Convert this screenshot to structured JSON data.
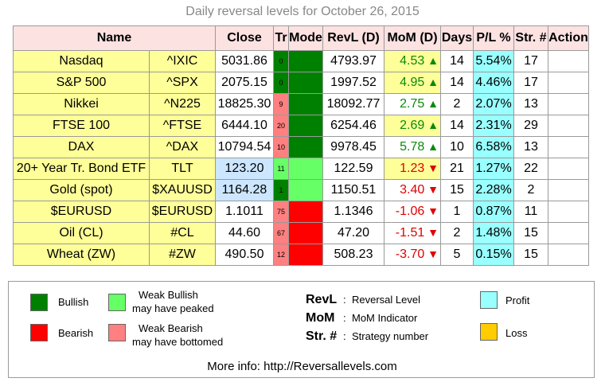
{
  "title": "Daily reversal levels for October 26, 2015",
  "headers": {
    "name": "Name",
    "close": "Close",
    "tr": "Tr",
    "mode": "Mode",
    "revl": "RevL (D)",
    "mom": "MoM (D)",
    "days": "Days",
    "pl": "P/L %",
    "str": "Str. #",
    "action": "Action"
  },
  "colors": {
    "bullish": "#008000",
    "weak_bullish": "#66ff66",
    "bearish": "#ff0000",
    "weak_bearish": "#ff8080",
    "profit": "#99ffff",
    "loss": "#ffcc00",
    "highlight_yellow": "#ffff99",
    "highlight_blue": "#cce6ff"
  },
  "rows": [
    {
      "name": "Nasdaq",
      "symbol": "^IXIC",
      "close": "5031.86",
      "tr": "0",
      "tr_color": "#008000",
      "mode_color": "#008000",
      "revl": "4793.97",
      "mom": "4.53",
      "mom_dir": "up",
      "mom_bg": "#ffff99",
      "days": "14",
      "pl": "5.54%",
      "pl_color": "#99ffff",
      "str": "17",
      "action": "",
      "close_bg": "#ffffff"
    },
    {
      "name": "S&P 500",
      "symbol": "^SPX",
      "close": "2075.15",
      "tr": "0",
      "tr_color": "#008000",
      "mode_color": "#008000",
      "revl": "1997.52",
      "mom": "4.95",
      "mom_dir": "up",
      "mom_bg": "#ffff99",
      "days": "14",
      "pl": "4.46%",
      "pl_color": "#99ffff",
      "str": "17",
      "action": "",
      "close_bg": "#ffffff"
    },
    {
      "name": "Nikkei",
      "symbol": "^N225",
      "close": "18825.30",
      "tr": "9",
      "tr_color": "#ff8080",
      "mode_color": "#008000",
      "revl": "18092.77",
      "mom": "2.75",
      "mom_dir": "up",
      "mom_bg": "#ffffff",
      "days": "2",
      "pl": "2.07%",
      "pl_color": "#99ffff",
      "str": "13",
      "action": "",
      "close_bg": "#ffffff"
    },
    {
      "name": "FTSE 100",
      "symbol": "^FTSE",
      "close": "6444.10",
      "tr": "20",
      "tr_color": "#ff8080",
      "mode_color": "#008000",
      "revl": "6254.46",
      "mom": "2.69",
      "mom_dir": "up",
      "mom_bg": "#ffff99",
      "days": "14",
      "pl": "2.31%",
      "pl_color": "#99ffff",
      "str": "29",
      "action": "",
      "close_bg": "#ffffff"
    },
    {
      "name": "DAX",
      "symbol": "^DAX",
      "close": "10794.54",
      "tr": "10",
      "tr_color": "#ff8080",
      "mode_color": "#008000",
      "revl": "9978.45",
      "mom": "5.78",
      "mom_dir": "up",
      "mom_bg": "#ffffff",
      "days": "10",
      "pl": "6.58%",
      "pl_color": "#99ffff",
      "str": "13",
      "action": "",
      "close_bg": "#ffffff"
    },
    {
      "name": "20+ Year Tr. Bond ETF",
      "symbol": "TLT",
      "close": "123.20",
      "tr": "11",
      "tr_color": "#66ff66",
      "mode_color": "#66ff66",
      "revl": "122.59",
      "mom": "1.23",
      "mom_dir": "down",
      "mom_bg": "#ffff99",
      "days": "21",
      "pl": "1.27%",
      "pl_color": "#99ffff",
      "str": "22",
      "action": "",
      "close_bg": "#cce6ff"
    },
    {
      "name": "Gold (spot)",
      "symbol": "$XAUUSD",
      "close": "1164.28",
      "tr": "1",
      "tr_color": "#008000",
      "mode_color": "#66ff66",
      "revl": "1150.51",
      "mom": "3.40",
      "mom_dir": "down",
      "mom_bg": "#ffffff",
      "days": "15",
      "pl": "2.28%",
      "pl_color": "#99ffff",
      "str": "2",
      "action": "",
      "close_bg": "#cce6ff"
    },
    {
      "name": "$EURUSD",
      "symbol": "$EURUSD",
      "close": "1.1011",
      "tr": "75",
      "tr_color": "#ff8080",
      "mode_color": "#ff0000",
      "revl": "1.1346",
      "mom": "-1.06",
      "mom_dir": "down",
      "mom_bg": "#ffffff",
      "days": "1",
      "pl": "0.87%",
      "pl_color": "#99ffff",
      "str": "11",
      "action": "",
      "close_bg": "#ffffff"
    },
    {
      "name": "Oil (CL)",
      "symbol": "#CL",
      "close": "44.60",
      "tr": "67",
      "tr_color": "#ff8080",
      "mode_color": "#ff0000",
      "revl": "47.20",
      "mom": "-1.51",
      "mom_dir": "down",
      "mom_bg": "#ffffff",
      "days": "2",
      "pl": "1.48%",
      "pl_color": "#99ffff",
      "str": "15",
      "action": "",
      "close_bg": "#ffffff"
    },
    {
      "name": "Wheat (ZW)",
      "symbol": "#ZW",
      "close": "490.50",
      "tr": "12",
      "tr_color": "#ff8080",
      "mode_color": "#ff0000",
      "revl": "508.23",
      "mom": "-3.70",
      "mom_dir": "down",
      "mom_bg": "#ffffff",
      "days": "5",
      "pl": "0.15%",
      "pl_color": "#99ffff",
      "str": "15",
      "action": "",
      "close_bg": "#ffffff"
    }
  ],
  "legend": {
    "bullish": "Bullish",
    "weak_bullish_1": "Weak Bullish",
    "weak_bullish_2": "may have peaked",
    "bearish": "Bearish",
    "weak_bearish_1": "Weak Bearish",
    "weak_bearish_2": "may have bottomed",
    "revl_key": "RevL",
    "revl_desc": "Reversal Level",
    "mom_key": "MoM",
    "mom_desc": "MoM Indicator",
    "str_key": "Str. #",
    "str_desc": "Strategy number",
    "profit": "Profit",
    "loss": "Loss",
    "colon": ":",
    "more_info": "More info: http://Reversallevels.com"
  }
}
